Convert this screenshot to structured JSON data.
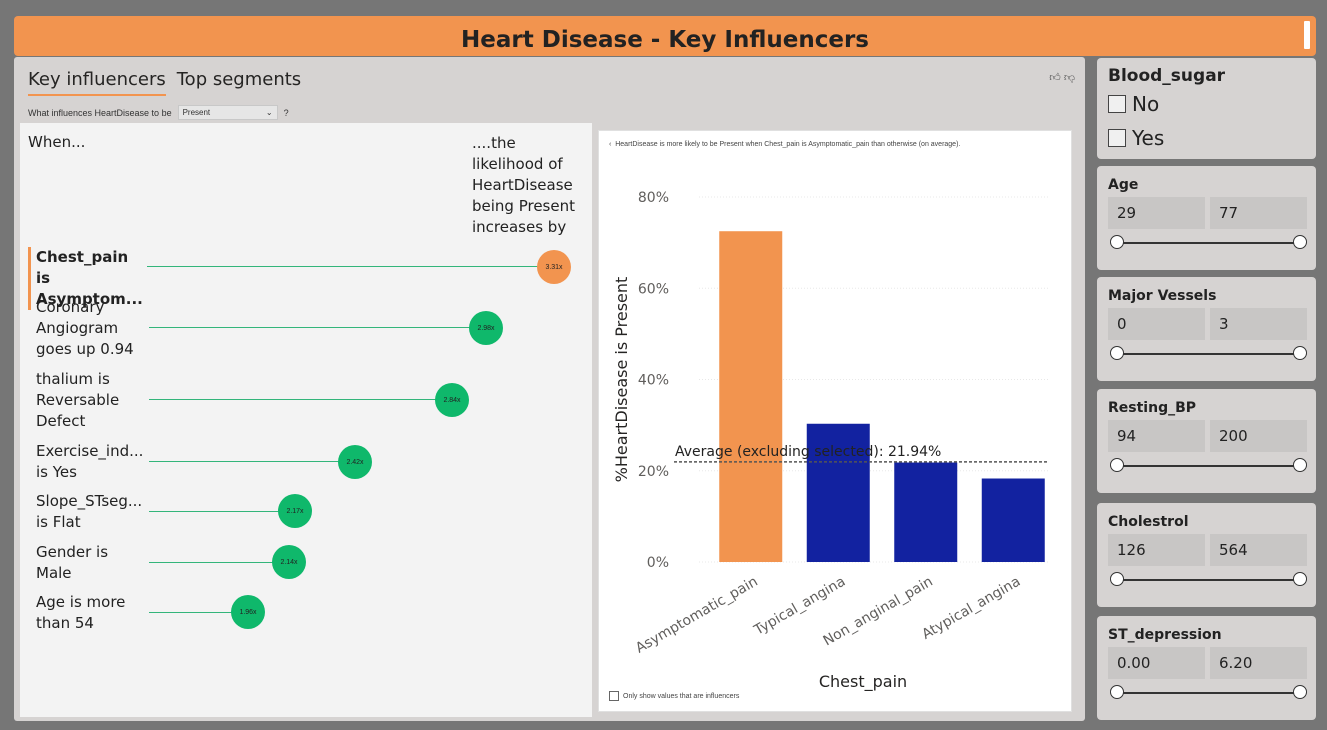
{
  "title": "Heart Disease - Key Influencers",
  "tabs": {
    "key_influencers": "Key influencers",
    "top_segments": "Top segments"
  },
  "question": {
    "label": "What influences HeartDisease to be",
    "selected": "Present",
    "help": "?"
  },
  "headers": {
    "when": "When...",
    "likelihood": [
      "....the",
      "likelihood of",
      "HeartDisease",
      "being Present",
      "increases by"
    ]
  },
  "influencers": [
    {
      "lines": [
        "Chest_pain is",
        "Asymptom..."
      ],
      "value": "3.31x",
      "selected": true
    },
    {
      "lines": [
        "Coronary",
        "Angiogram",
        "goes up 0.94"
      ],
      "value": "2.98x",
      "selected": false
    },
    {
      "lines": [
        "thalium is",
        "Reversable",
        "Defect"
      ],
      "value": "2.84x",
      "selected": false
    },
    {
      "lines": [
        "Exercise_ind...",
        "is Yes"
      ],
      "value": "2.42x",
      "selected": false
    },
    {
      "lines": [
        "Slope_STseg...",
        "is Flat"
      ],
      "value": "2.17x",
      "selected": false
    },
    {
      "lines": [
        "Gender is",
        "Male"
      ],
      "value": "2.14x",
      "selected": false
    },
    {
      "lines": [
        "Age is more",
        "than 54"
      ],
      "value": "1.96x",
      "selected": false
    }
  ],
  "chart_panel": {
    "description": "HeartDisease is more likely to be Present when Chest_pain is Asymptomatic_pain than otherwise (on average).",
    "only_influencers_label": "Only show values that are influencers"
  },
  "chart_data": {
    "type": "bar",
    "categories": [
      "Asymptomatic_pain",
      "Typical_angina",
      "Non_anginal_pain",
      "Atypical_angina"
    ],
    "values": [
      72.5,
      30.3,
      21.8,
      18.3
    ],
    "ylabel": "%HeartDisease is Present",
    "xlabel": "Chest_pain",
    "ylim": [
      0,
      80
    ],
    "yticks": [
      "0%",
      "20%",
      "40%",
      "60%",
      "80%"
    ],
    "average_label": "Average (excluding selected): 21.94%",
    "average_value": 21.94,
    "colors": {
      "selected": "#f2944f",
      "other": "#1222a0"
    },
    "grid": true
  },
  "slicers": {
    "blood_sugar": {
      "title": "Blood_sugar",
      "options": [
        "No",
        "Yes"
      ]
    },
    "age": {
      "title": "Age",
      "min": "29",
      "max": "77"
    },
    "major_vessels": {
      "title": "Major Vessels",
      "min": "0",
      "max": "3"
    },
    "resting_bp": {
      "title": "Resting_BP",
      "min": "94",
      "max": "200"
    },
    "cholestrol": {
      "title": "Cholestrol",
      "min": "126",
      "max": "564"
    },
    "st_depression": {
      "title": "ST_depression",
      "min": "0.00",
      "max": "6.20"
    }
  }
}
